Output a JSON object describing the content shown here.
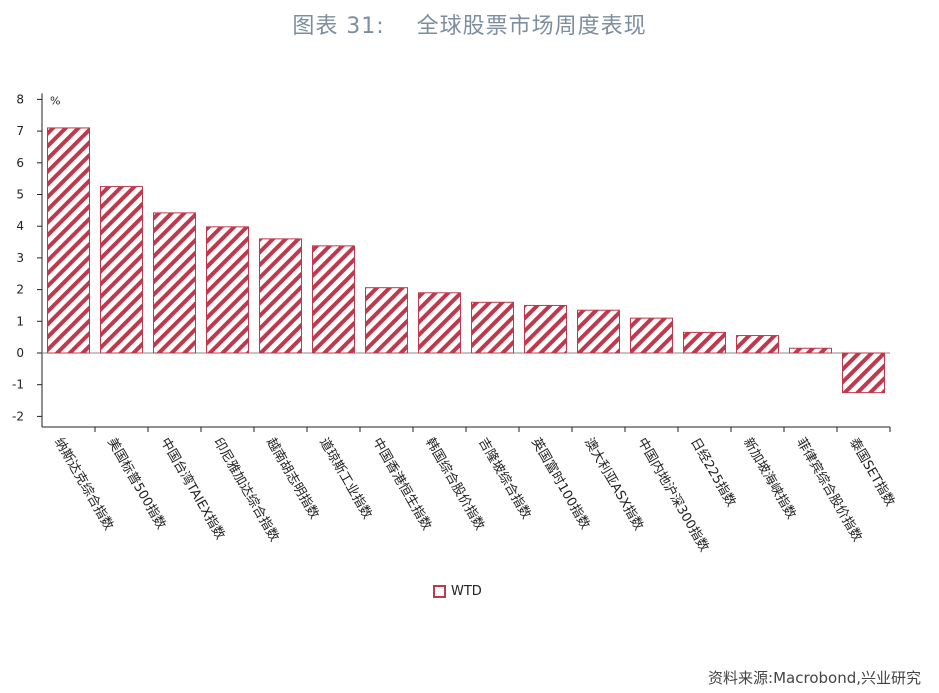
{
  "title": "图表 31:    全球股票市场周度表现",
  "source": "资料来源:Macrobond,兴业研究",
  "colors": {
    "bar_stroke": "#c0384b",
    "hatch": "#c0384b",
    "title": "#7d8ea0"
  },
  "chart_data": {
    "type": "bar",
    "unit_label": "%",
    "categories": [
      "纳斯达克综合指数",
      "美国标普500指数",
      "中国台湾TAIEX指数",
      "印尼雅加达综合指数",
      "越南胡志明指数",
      "道琼斯工业指数",
      "中国香港恒生指数",
      "韩国综合股价指数",
      "吉隆坡综合指数",
      "英国富时100指数",
      "澳大利亚ASX指数",
      "中国内地沪深300指数",
      "日经225指数",
      "新加坡海峡指数",
      "菲律宾综合股价指数",
      "泰国SET指数"
    ],
    "series": [
      {
        "name": "WTD",
        "values": [
          7.1,
          5.25,
          4.42,
          3.98,
          3.6,
          3.38,
          2.06,
          1.9,
          1.6,
          1.5,
          1.35,
          1.1,
          0.65,
          0.55,
          0.15,
          -1.25
        ]
      }
    ],
    "ylim": [
      -2,
      8
    ],
    "yticks": [
      -2,
      -1,
      0,
      1,
      2,
      3,
      4,
      5,
      6,
      7,
      8
    ]
  }
}
